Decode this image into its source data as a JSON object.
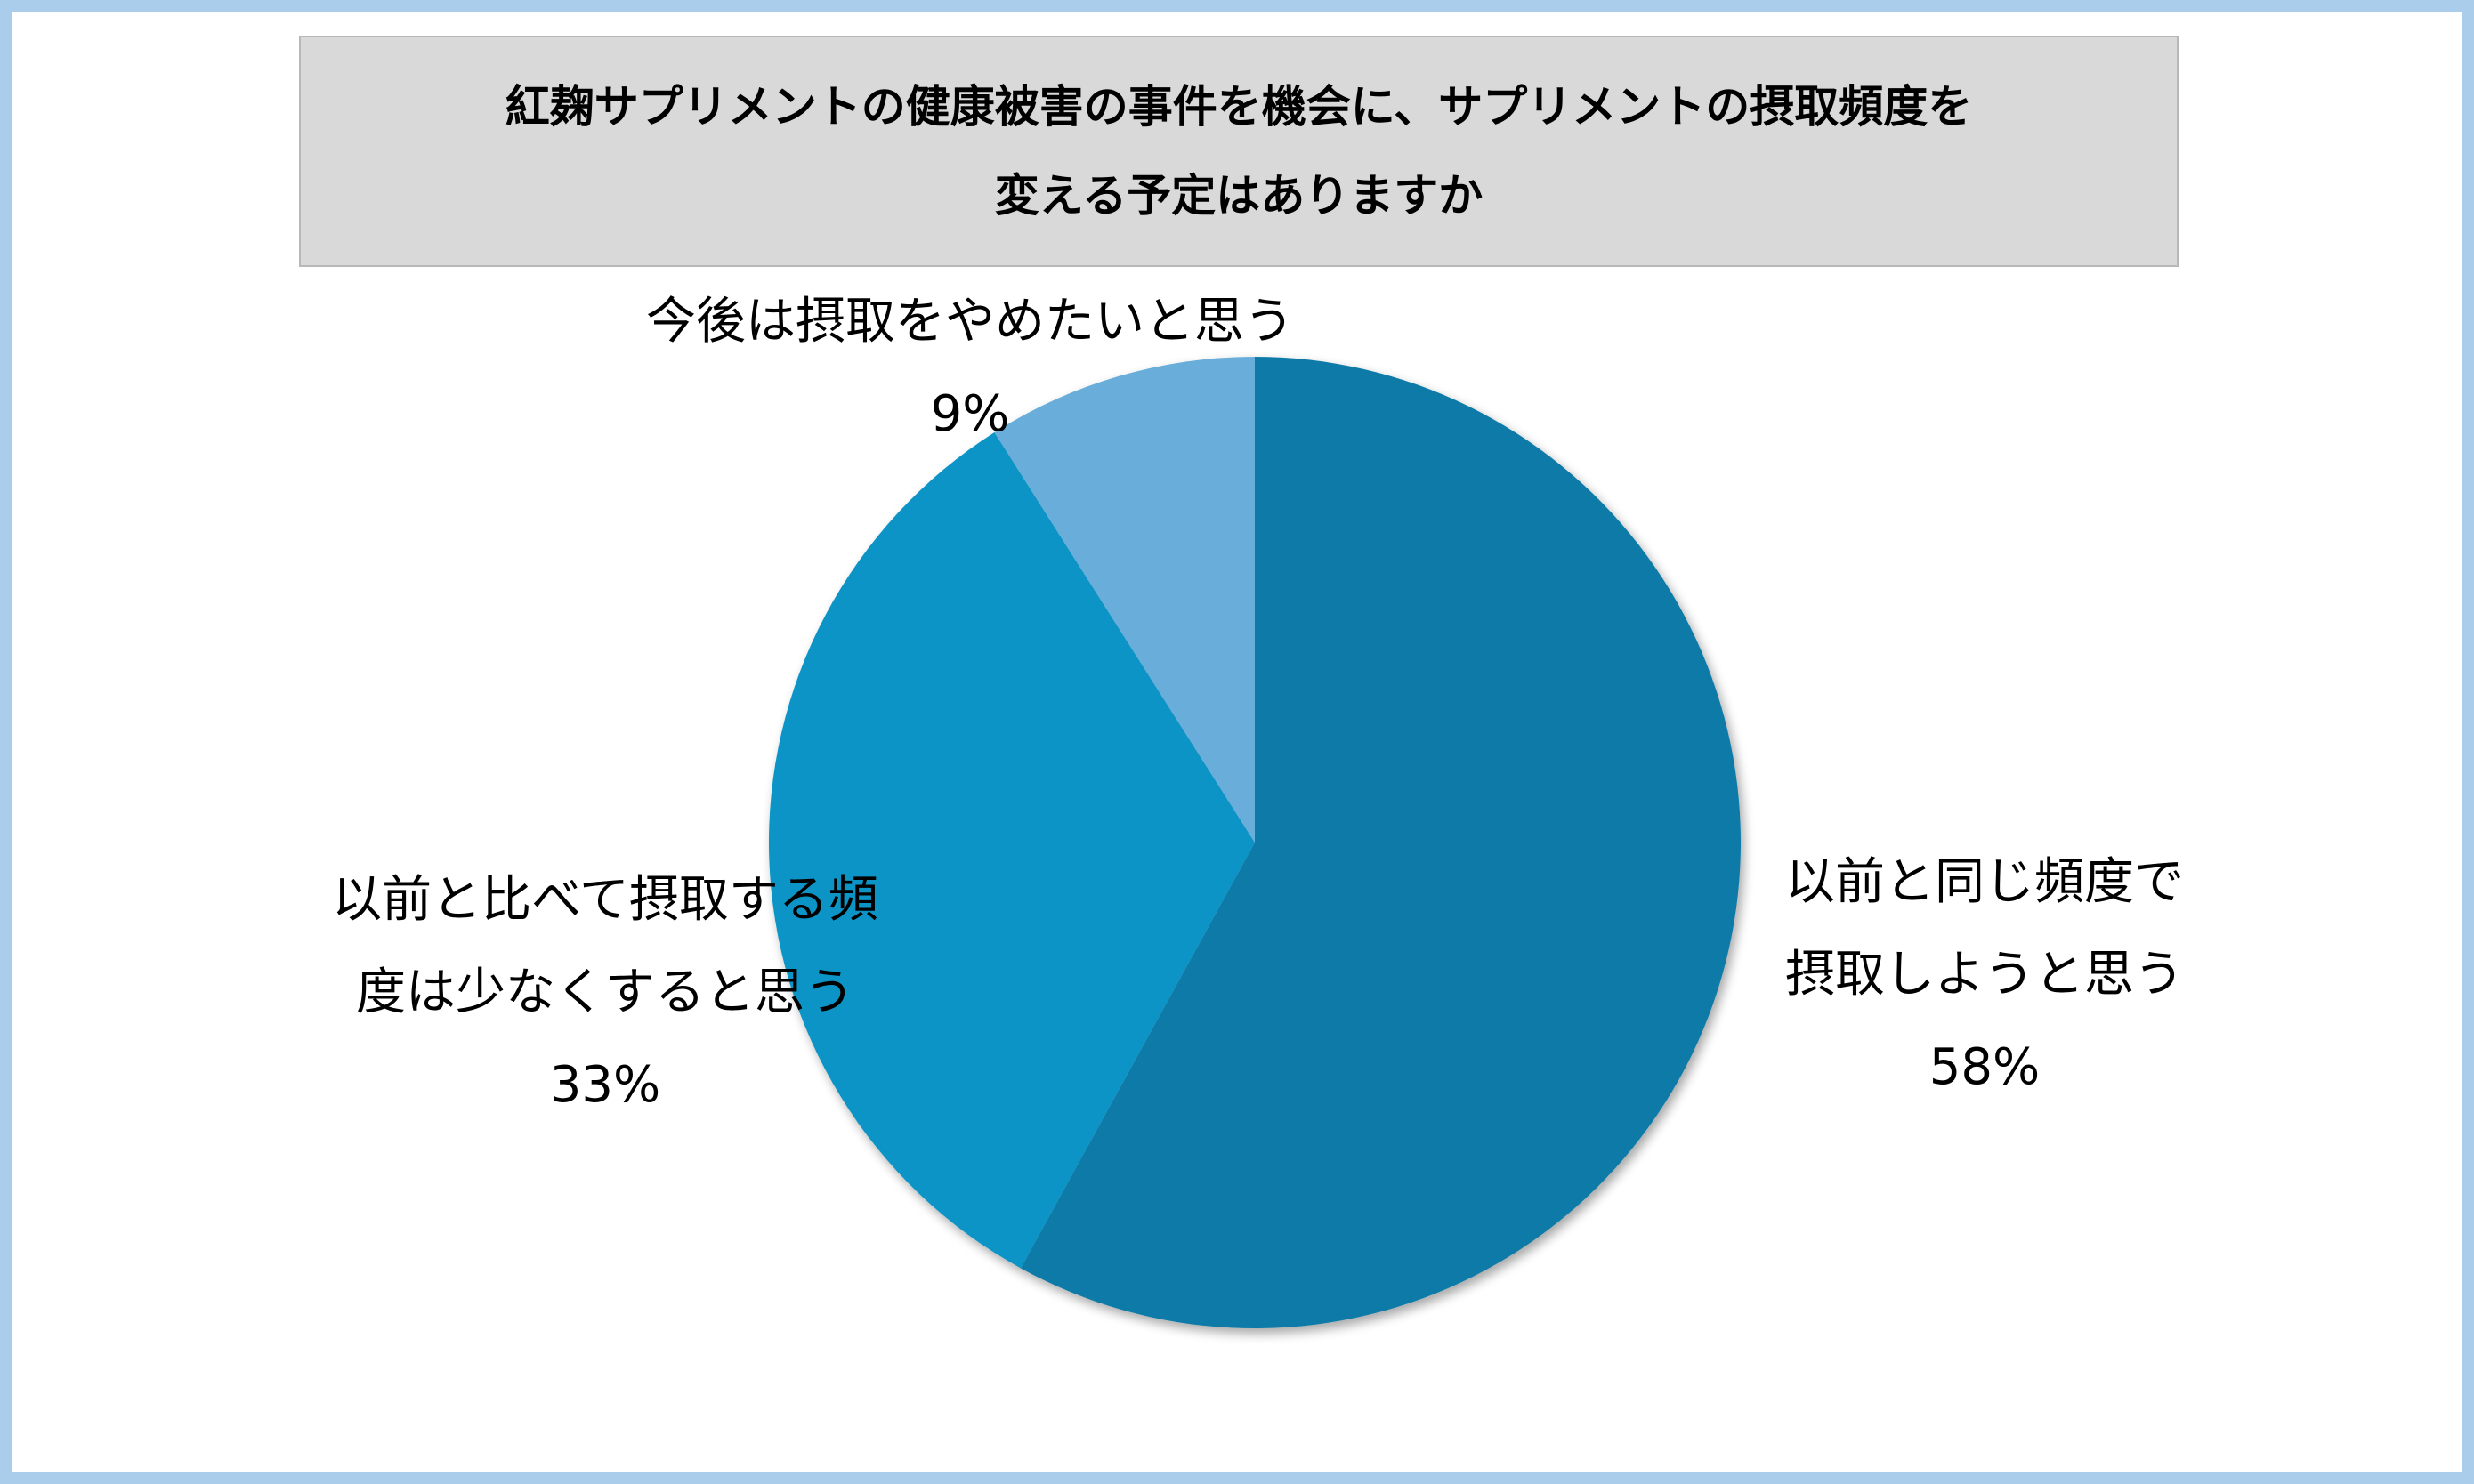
{
  "title": {
    "line1": "紅麹サプリメントの健康被害の事件を機会に、サプリメントの摂取頻度を",
    "line2": "変える予定はありますか"
  },
  "colors": {
    "frame": "#a9cdea",
    "title_bg": "#d9d9d9",
    "slice_maintain": "#0a7aa7",
    "slice_reduce": "#0e94c6",
    "slice_stop": "#69aedb"
  },
  "chart_data": {
    "type": "pie",
    "title": "紅麹サプリメントの健康被害の事件を機会に、サプリメントの摂取頻度を変える予定はありますか",
    "start": "12 o'clock, clockwise",
    "slices": [
      {
        "label_lines": [
          "以前と同じ頻度で",
          "摂取しようと思う"
        ],
        "value": 58,
        "value_label": "58%",
        "color": "#0a7aa7"
      },
      {
        "label_lines": [
          "以前と比べて摂取する頻",
          "度は少なくすると思う"
        ],
        "value": 33,
        "value_label": "33%",
        "color": "#0e94c6"
      },
      {
        "label_lines": [
          "今後は摂取をやめたいと思う"
        ],
        "value": 9,
        "value_label": "9%",
        "color": "#69aedb"
      }
    ]
  }
}
